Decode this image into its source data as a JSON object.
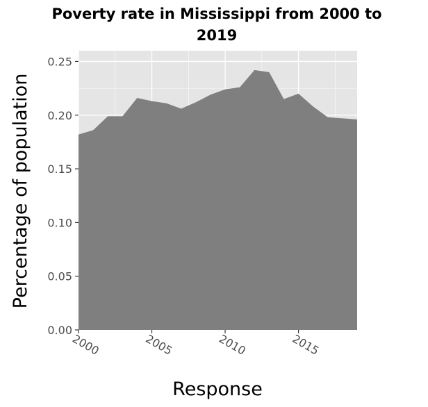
{
  "chart_data": {
    "type": "area",
    "title_line1": "Poverty rate in Mississippi from 2000 to",
    "title_line2": "2019",
    "xlabel": "Response",
    "ylabel": "Percentage of population",
    "x": [
      2000,
      2001,
      2002,
      2003,
      2004,
      2005,
      2006,
      2007,
      2008,
      2009,
      2010,
      2011,
      2012,
      2013,
      2014,
      2015,
      2016,
      2017,
      2018,
      2019
    ],
    "values": [
      0.182,
      0.186,
      0.199,
      0.199,
      0.216,
      0.213,
      0.211,
      0.206,
      0.212,
      0.219,
      0.224,
      0.226,
      0.242,
      0.24,
      0.215,
      0.22,
      0.208,
      0.198,
      0.197,
      0.196
    ],
    "xlim": [
      2000,
      2019
    ],
    "ylim": [
      0,
      0.26
    ],
    "x_ticks": [
      2000,
      2005,
      2010,
      2015
    ],
    "x_tick_labels": [
      "2000",
      "2005",
      "2010",
      "2015"
    ],
    "y_ticks": [
      0,
      0.05,
      0.1,
      0.15,
      0.2,
      0.25
    ],
    "y_tick_labels": [
      "0.00",
      "0.05",
      "0.10",
      "0.15",
      "0.20",
      "0.25"
    ],
    "grid": true,
    "legend": "none",
    "colors": {
      "panel": "#e5e5e5",
      "grid": "#ffffff",
      "fill": "#7f7f7f",
      "tick": "#4d4d4d"
    }
  }
}
